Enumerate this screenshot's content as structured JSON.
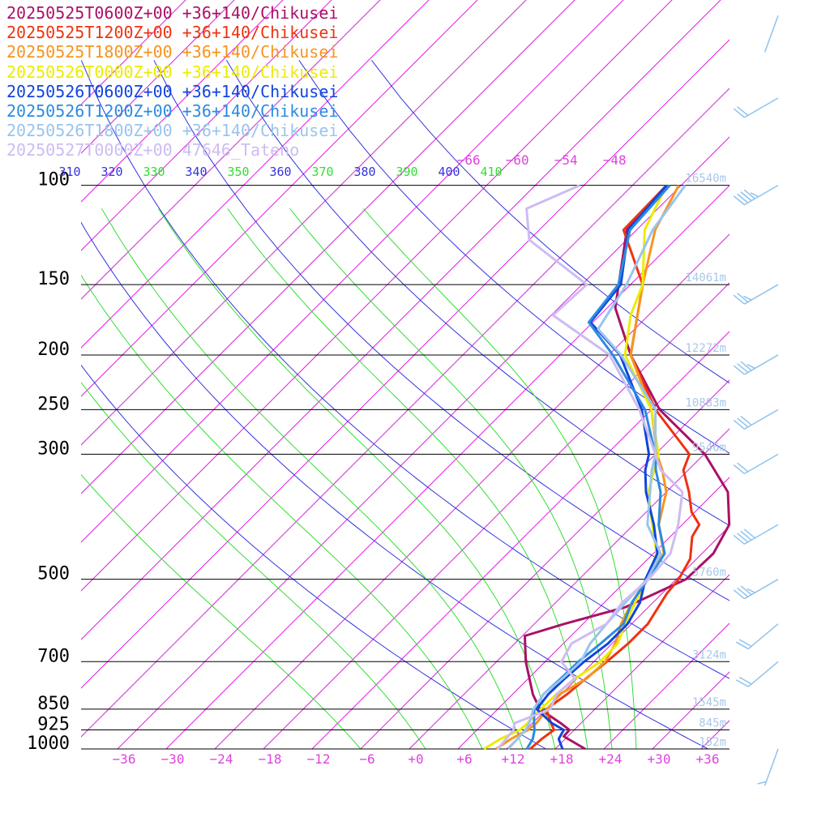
{
  "chart_data": {
    "type": "line",
    "title": "",
    "xlabel": "",
    "ylabel": "",
    "yscale": "log-pressure",
    "ylim": [
      1000,
      100
    ],
    "xlim": [
      -39,
      39
    ],
    "pressure_levels": [
      100,
      150,
      200,
      250,
      300,
      500,
      700,
      850,
      925,
      1000
    ],
    "pressure_labels": [
      "100",
      "150",
      "200",
      "250",
      "300",
      "500",
      "700",
      "850",
      "925",
      "1000"
    ],
    "temperature_ticks": [
      -36,
      -30,
      -24,
      -18,
      -12,
      -6,
      0,
      6,
      12,
      18,
      24,
      30,
      36
    ],
    "temperature_tick_labels": [
      "−36",
      "−30",
      "−24",
      "−18",
      "−12",
      "−6",
      "+0",
      "+6",
      "+12",
      "+18",
      "+24",
      "+30",
      "+36"
    ],
    "upper_isotherm_labels": [
      "−66",
      "−60",
      "−54",
      "−48"
    ],
    "theta_labels": [
      {
        "text": "310",
        "kind": "dry"
      },
      {
        "text": "320",
        "kind": "dry"
      },
      {
        "text": "330",
        "kind": "moist"
      },
      {
        "text": "340",
        "kind": "dry"
      },
      {
        "text": "350",
        "kind": "moist"
      },
      {
        "text": "360",
        "kind": "dry"
      },
      {
        "text": "370",
        "kind": "moist"
      },
      {
        "text": "380",
        "kind": "dry"
      },
      {
        "text": "390",
        "kind": "moist"
      },
      {
        "text": "400",
        "kind": "dry"
      },
      {
        "text": "410",
        "kind": "moist"
      }
    ],
    "height_labels": [
      {
        "p": 100,
        "text": "16540m"
      },
      {
        "p": 150,
        "text": "14061m"
      },
      {
        "p": 200,
        "text": "12272m"
      },
      {
        "p": 250,
        "text": "10883m"
      },
      {
        "p": 300,
        "text": "9546m"
      },
      {
        "p": 500,
        "text": "5760m"
      },
      {
        "p": 700,
        "text": "3124m"
      },
      {
        "p": 850,
        "text": "1545m"
      },
      {
        "p": 925,
        "text": "845m"
      },
      {
        "p": 1000,
        "text": "152m"
      }
    ],
    "colors": {
      "isobar": "#000000",
      "isotherm": "#dd22dd",
      "dry_adiabat": "#3333dd",
      "moist_adiabat": "#33dd33",
      "height": "#a8c8e8",
      "wind_barb": "#8fc3ec"
    },
    "series": [
      {
        "name": "20250525T0600Z+00 +36+140/Chikusei",
        "color": "#aa1166",
        "points": [
          [
            1000,
            21.7
          ],
          [
            950,
            17.5
          ],
          [
            925,
            17.4
          ],
          [
            900,
            15.5
          ],
          [
            850,
            11.2
          ],
          [
            800,
            8.5
          ],
          [
            700,
            3.6
          ],
          [
            630,
            0.3
          ],
          [
            600,
            3.7
          ],
          [
            560,
            9.2
          ],
          [
            500,
            13.2
          ],
          [
            450,
            13.4
          ],
          [
            400,
            11.8
          ],
          [
            350,
            7.6
          ],
          [
            300,
            0.1
          ],
          [
            250,
            -11.0
          ],
          [
            200,
            -21.3
          ],
          [
            165,
            -29.0
          ],
          [
            120,
            -37.2
          ],
          [
            100,
            -37.6
          ]
        ]
      },
      {
        "name": "20250525T1200Z+00 +36+140/Chikusei",
        "color": "#ee3311",
        "points": [
          [
            1000,
            14.9
          ],
          [
            960,
            15.1
          ],
          [
            925,
            15.5
          ],
          [
            900,
            14.3
          ],
          [
            850,
            12.0
          ],
          [
            800,
            12.7
          ],
          [
            750,
            13.1
          ],
          [
            700,
            13.6
          ],
          [
            650,
            14.0
          ],
          [
            600,
            14.0
          ],
          [
            530,
            12.6
          ],
          [
            500,
            12.3
          ],
          [
            460,
            11.2
          ],
          [
            420,
            8.7
          ],
          [
            400,
            8.1
          ],
          [
            380,
            5.6
          ],
          [
            350,
            2.8
          ],
          [
            320,
            -0.6
          ],
          [
            300,
            -1.8
          ],
          [
            250,
            -11.5
          ],
          [
            200,
            -21.3
          ],
          [
            150,
            -28.5
          ],
          [
            120,
            -37.6
          ],
          [
            100,
            -37.8
          ]
        ]
      },
      {
        "name": "20250525T1800Z+00 +36+140/Chikusei",
        "color": "#f7941d",
        "points": [
          [
            1000,
            10.7
          ],
          [
            960,
            11.3
          ],
          [
            925,
            12.3
          ],
          [
            900,
            12.5
          ],
          [
            850,
            12.1
          ],
          [
            800,
            11.8
          ],
          [
            750,
            13.2
          ],
          [
            700,
            13.4
          ],
          [
            650,
            12.4
          ],
          [
            600,
            10.7
          ],
          [
            550,
            9.4
          ],
          [
            500,
            8.4
          ],
          [
            450,
            7.3
          ],
          [
            400,
            3.1
          ],
          [
            350,
            0.0
          ],
          [
            320,
            -3.2
          ],
          [
            300,
            -5.8
          ],
          [
            250,
            -12.0
          ],
          [
            200,
            -21.3
          ],
          [
            150,
            -28.5
          ],
          [
            120,
            -33.7
          ],
          [
            100,
            -36.3
          ]
        ]
      },
      {
        "name": "20250526T0000Z+00 +36+140/Chikusei",
        "color": "#ecec00",
        "points": [
          [
            1000,
            9.2
          ],
          [
            960,
            10.0
          ],
          [
            925,
            11.3
          ],
          [
            900,
            11.4
          ],
          [
            850,
            11.3
          ],
          [
            800,
            11.4
          ],
          [
            750,
            11.8
          ],
          [
            700,
            12.8
          ],
          [
            650,
            12.7
          ],
          [
            600,
            11.2
          ],
          [
            550,
            9.8
          ],
          [
            500,
            8.4
          ],
          [
            450,
            6.4
          ],
          [
            400,
            2.3
          ],
          [
            350,
            -2.2
          ],
          [
            320,
            -4.2
          ],
          [
            300,
            -5.6
          ],
          [
            250,
            -12.0
          ],
          [
            200,
            -22.0
          ],
          [
            170,
            -26.2
          ],
          [
            150,
            -28.5
          ],
          [
            120,
            -35.0
          ],
          [
            100,
            -37.8
          ]
        ]
      },
      {
        "name": "20250526T0600Z+00 +36+140/Chikusei",
        "color": "#1144dd",
        "points": [
          [
            1000,
            18.9
          ],
          [
            960,
            17.2
          ],
          [
            925,
            16.7
          ],
          [
            900,
            14.4
          ],
          [
            850,
            10.8
          ],
          [
            800,
            10.4
          ],
          [
            750,
            10.5
          ],
          [
            700,
            10.8
          ],
          [
            650,
            11.5
          ],
          [
            600,
            11.5
          ],
          [
            550,
            10.4
          ],
          [
            500,
            8.2
          ],
          [
            450,
            6.5
          ],
          [
            400,
            2.5
          ],
          [
            350,
            -2.5
          ],
          [
            320,
            -5.3
          ],
          [
            300,
            -6.8
          ],
          [
            250,
            -13.2
          ],
          [
            200,
            -22.6
          ],
          [
            175,
            -30.3
          ],
          [
            150,
            -31.2
          ],
          [
            120,
            -37.0
          ],
          [
            100,
            -37.8
          ]
        ]
      },
      {
        "name": "20250526T1200Z+00 +36+140/Chikusei",
        "color": "#2b8be0",
        "points": [
          [
            1000,
            14.5
          ],
          [
            960,
            14.0
          ],
          [
            925,
            13.1
          ],
          [
            900,
            12.2
          ],
          [
            850,
            10.5
          ],
          [
            800,
            9.8
          ],
          [
            750,
            10.0
          ],
          [
            700,
            10.1
          ],
          [
            650,
            10.6
          ],
          [
            600,
            11.0
          ],
          [
            550,
            9.4
          ],
          [
            500,
            8.5
          ],
          [
            450,
            7.4
          ],
          [
            400,
            3.1
          ],
          [
            350,
            -0.7
          ],
          [
            320,
            -4.0
          ],
          [
            300,
            -6.0
          ],
          [
            250,
            -12.8
          ],
          [
            200,
            -23.5
          ],
          [
            175,
            -30.5
          ],
          [
            150,
            -31.5
          ],
          [
            120,
            -36.8
          ],
          [
            100,
            -37.4
          ]
        ]
      },
      {
        "name": "20250526T1800Z+00 +36+140/Chikusei",
        "color": "#99c4ee",
        "points": [
          [
            1000,
            12.2
          ],
          [
            960,
            12.1
          ],
          [
            925,
            12.0
          ],
          [
            900,
            11.6
          ],
          [
            850,
            10.4
          ],
          [
            800,
            9.8
          ],
          [
            750,
            10.2
          ],
          [
            700,
            10.4
          ],
          [
            650,
            9.3
          ],
          [
            600,
            8.9
          ],
          [
            550,
            8.6
          ],
          [
            500,
            8.4
          ],
          [
            450,
            6.9
          ],
          [
            400,
            1.7
          ],
          [
            350,
            -2.0
          ],
          [
            320,
            -4.5
          ],
          [
            300,
            -6.0
          ],
          [
            250,
            -11.5
          ],
          [
            200,
            -22.5
          ],
          [
            180,
            -28.5
          ],
          [
            150,
            -30.5
          ],
          [
            120,
            -34.0
          ],
          [
            100,
            -35.5
          ]
        ]
      },
      {
        "name": "20250527T0000Z+00 47646_Tateno",
        "color": "#cdbcf2",
        "points": [
          [
            1000,
            10.9
          ],
          [
            960,
            10.7
          ],
          [
            925,
            10.5
          ],
          [
            900,
            9.8
          ],
          [
            850,
            12.5
          ],
          [
            800,
            11.4
          ],
          [
            750,
            11.7
          ],
          [
            700,
            8.0
          ],
          [
            650,
            7.0
          ],
          [
            600,
            8.9
          ],
          [
            550,
            8.2
          ],
          [
            500,
            8.6
          ],
          [
            450,
            8.1
          ],
          [
            400,
            5.5
          ],
          [
            350,
            2.0
          ],
          [
            320,
            -3.4
          ],
          [
            300,
            -6.0
          ],
          [
            250,
            -13.5
          ],
          [
            200,
            -23.9
          ],
          [
            170,
            -35.8
          ],
          [
            150,
            -35.4
          ],
          [
            125,
            -48.0
          ],
          [
            110,
            -52.2
          ],
          [
            100,
            -48.5
          ]
        ]
      }
    ],
    "wind_barbs": [
      {
        "p": 50,
        "dir": 200,
        "kt": 0
      },
      {
        "p": 70,
        "dir": 240,
        "kt": 20
      },
      {
        "p": 100,
        "dir": 240,
        "kt": 45
      },
      {
        "p": 150,
        "dir": 240,
        "kt": 55
      },
      {
        "p": 200,
        "dir": 240,
        "kt": 65
      },
      {
        "p": 250,
        "dir": 240,
        "kt": 60
      },
      {
        "p": 300,
        "dir": 240,
        "kt": 50
      },
      {
        "p": 400,
        "dir": 240,
        "kt": 40
      },
      {
        "p": 500,
        "dir": 240,
        "kt": 35
      },
      {
        "p": 600,
        "dir": 230,
        "kt": 20
      },
      {
        "p": 700,
        "dir": 230,
        "kt": 20
      },
      {
        "p": 1000,
        "dir": 200,
        "kt": 5
      }
    ]
  }
}
